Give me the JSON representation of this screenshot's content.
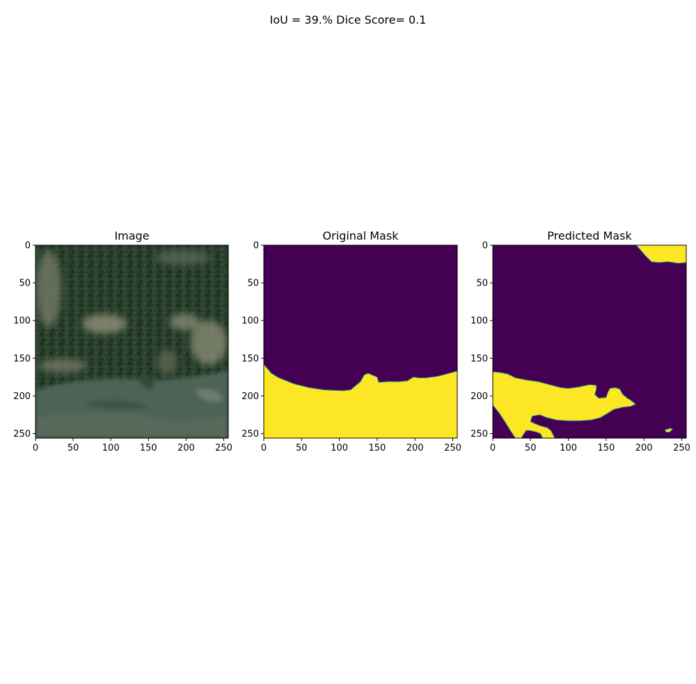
{
  "figure": {
    "suptitle": "IoU = 39.% Dice Score= 0.1"
  },
  "colors": {
    "mask_background": "#440154",
    "mask_foreground": "#fde725",
    "mask_edge": "#21918c",
    "satellite_dark": "#2c3a2c",
    "satellite_canopy": "#253d2a",
    "satellite_clearing": "#8e9179",
    "satellite_water": "#4c6254"
  },
  "chart_data": [
    {
      "type": "heatmap",
      "title": "Image",
      "xlabel": "",
      "ylabel": "",
      "xlim": [
        0,
        256
      ],
      "ylim": [
        256,
        0
      ],
      "xticks": [
        0,
        50,
        100,
        150,
        200,
        250
      ],
      "yticks": [
        0,
        50,
        100,
        150,
        200,
        250
      ],
      "grid": false
    },
    {
      "type": "heatmap",
      "title": "Original Mask",
      "xlabel": "",
      "ylabel": "",
      "xlim": [
        0,
        256
      ],
      "ylim": [
        256,
        0
      ],
      "xticks": [
        0,
        50,
        100,
        150,
        200,
        250
      ],
      "yticks": [
        0,
        50,
        100,
        150,
        200,
        250
      ],
      "grid": false,
      "value_range": [
        0,
        1
      ],
      "foreground_boundary": [
        [
          0,
          158
        ],
        [
          10,
          170
        ],
        [
          20,
          176
        ],
        [
          40,
          184
        ],
        [
          60,
          189
        ],
        [
          80,
          192
        ],
        [
          105,
          193
        ],
        [
          115,
          192
        ],
        [
          122,
          186
        ],
        [
          128,
          181
        ],
        [
          133,
          172
        ],
        [
          138,
          170
        ],
        [
          145,
          173
        ],
        [
          150,
          175
        ],
        [
          152,
          182
        ],
        [
          165,
          181
        ],
        [
          180,
          181
        ],
        [
          190,
          180
        ],
        [
          198,
          175
        ],
        [
          205,
          176
        ],
        [
          215,
          176
        ],
        [
          230,
          174
        ],
        [
          245,
          170
        ],
        [
          256,
          167
        ]
      ]
    },
    {
      "type": "heatmap",
      "title": "Predicted Mask",
      "xlabel": "",
      "ylabel": "",
      "xlim": [
        0,
        256
      ],
      "ylim": [
        256,
        0
      ],
      "xticks": [
        0,
        50,
        100,
        150,
        200,
        250
      ],
      "yticks": [
        0,
        50,
        100,
        150,
        200,
        250
      ],
      "grid": false,
      "value_range": [
        0,
        1
      ],
      "foreground_regions": [
        [
          [
            190,
            0
          ],
          [
            256,
            0
          ],
          [
            256,
            23
          ],
          [
            245,
            24
          ],
          [
            232,
            22
          ],
          [
            220,
            23
          ],
          [
            210,
            22
          ],
          [
            202,
            14
          ],
          [
            196,
            7
          ]
        ],
        [
          [
            0,
            168
          ],
          [
            10,
            169
          ],
          [
            20,
            171
          ],
          [
            30,
            176
          ],
          [
            45,
            179
          ],
          [
            60,
            181
          ],
          [
            75,
            185
          ],
          [
            90,
            189
          ],
          [
            100,
            190
          ],
          [
            115,
            188
          ],
          [
            128,
            185
          ],
          [
            137,
            186
          ],
          [
            137,
            191
          ],
          [
            135,
            198
          ],
          [
            140,
            203
          ],
          [
            150,
            202
          ],
          [
            152,
            196
          ],
          [
            155,
            190
          ],
          [
            162,
            189
          ],
          [
            168,
            191
          ],
          [
            172,
            198
          ],
          [
            178,
            203
          ],
          [
            183,
            206
          ],
          [
            189,
            211
          ],
          [
            182,
            214
          ],
          [
            172,
            215
          ],
          [
            160,
            218
          ],
          [
            152,
            223
          ],
          [
            142,
            229
          ],
          [
            130,
            232
          ],
          [
            115,
            233
          ],
          [
            100,
            233
          ],
          [
            85,
            232
          ],
          [
            72,
            229
          ],
          [
            62,
            225
          ],
          [
            52,
            227
          ],
          [
            50,
            234
          ],
          [
            56,
            237
          ],
          [
            64,
            240
          ],
          [
            72,
            242
          ],
          [
            77,
            246
          ],
          [
            82,
            256
          ],
          [
            66,
            256
          ],
          [
            63,
            250
          ],
          [
            58,
            248
          ],
          [
            50,
            246
          ],
          [
            44,
            246
          ],
          [
            40,
            252
          ],
          [
            38,
            256
          ],
          [
            30,
            256
          ],
          [
            22,
            244
          ],
          [
            16,
            234
          ],
          [
            8,
            222
          ],
          [
            0,
            212
          ]
        ],
        [
          [
            228,
            245
          ],
          [
            235,
            243
          ],
          [
            238,
            244
          ],
          [
            234,
            248
          ],
          [
            229,
            248
          ]
        ]
      ]
    }
  ]
}
